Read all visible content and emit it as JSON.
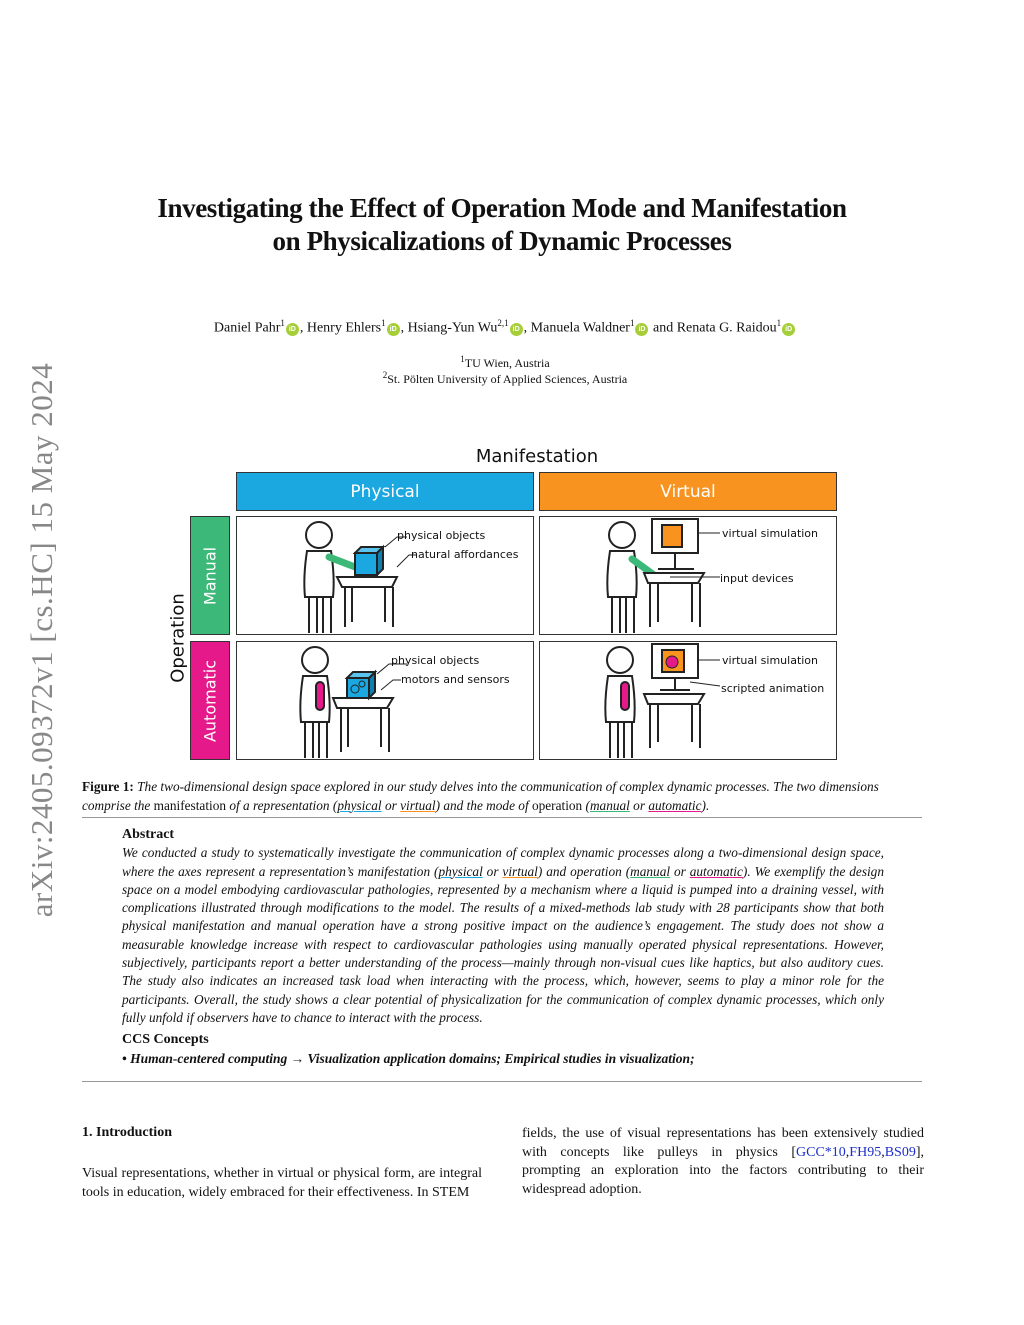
{
  "sidebar_stamp": "arXiv:2405.09372v1  [cs.HC]  15 May 2024",
  "title": {
    "line1": "Investigating the Effect of Operation Mode and Manifestation",
    "line2": "on Physicalizations of Dynamic Processes"
  },
  "authors": [
    {
      "name": "Daniel Pahr",
      "sup": "1"
    },
    {
      "name": "Henry Ehlers",
      "sup": "1"
    },
    {
      "name": "Hsiang-Yun Wu",
      "sup": "2,1"
    },
    {
      "name": "Manuela Waldner",
      "sup": "1"
    },
    {
      "name": "Renata G. Raidou",
      "sup": "1"
    }
  ],
  "author_sep": ", ",
  "author_and": " and ",
  "orcid_label": "iD",
  "affiliations": [
    {
      "sup": "1",
      "text": "TU Wien, Austria"
    },
    {
      "sup": "2",
      "text": "St. Pölten University of Applied Sciences, Austria"
    }
  ],
  "figure": {
    "axis_top": "Manifestation",
    "axis_left": "Operation",
    "columns": [
      {
        "label": "Physical",
        "color": "#1ba8e0"
      },
      {
        "label": "Virtual",
        "color": "#f7931e"
      }
    ],
    "rows": [
      {
        "label": "Manual",
        "color": "#3cb878"
      },
      {
        "label": "Automatic",
        "color": "#e6198a"
      }
    ],
    "cells": {
      "manual_physical": [
        "physical objects",
        "natural affordances"
      ],
      "manual_virtual": [
        "virtual simulation",
        "input devices"
      ],
      "automatic_physical": [
        "physical objects",
        "motors and sensors"
      ],
      "automatic_virtual": [
        "virtual simulation",
        "scripted animation"
      ]
    },
    "caption": {
      "label": "Figure 1:",
      "t1": " The two-dimensional design space explored in our study delves into the communication of complex dynamic processes. The two dimensions comprise the ",
      "manifestation": "manifestation",
      "t2": " of a representation (",
      "physical": "physical",
      "or1": " or ",
      "virtual": "virtual",
      "t3": ") and the mode of ",
      "operation": "operation",
      "t4": " (",
      "manual": "manual",
      "or2": " or ",
      "automatic": "automatic",
      "t5": ")."
    }
  },
  "abstract": {
    "heading": "Abstract",
    "p1": "We conducted a study to systematically investigate the communication of complex dynamic processes along a two-dimensional design space, where the axes represent a representation’s manifestation (",
    "physical": "physical",
    "or1": " or ",
    "virtual": "virtual",
    "p2": ") and operation (",
    "manual": "manual",
    "or2": " or ",
    "automatic": "automatic",
    "p3": "). We exemplify the design space on a model embodying cardiovascular pathologies, represented by a mechanism where a liquid is pumped into a draining vessel, with complications illustrated through modifications to the model. The results of a mixed-methods lab study with 28 participants show that both physical manifestation and manual operation have a strong positive impact on the audience’s engagement. The study does not show a measurable knowledge increase with respect to cardiovascular pathologies using manually operated physical representations. However, subjectively, participants report a better understanding of the process—mainly through non-visual cues like haptics, but also auditory cues. The study also indicates an increased task load when interacting with the process, which, however, seems to play a minor role for the participants. Overall, the study shows a clear potential of physicalization for the communication of complex dynamic processes, which only fully unfold if observers have to chance to interact with the process."
  },
  "ccs": {
    "heading": "CCS Concepts",
    "text": "• Human-centered computing → Visualization application domains; Empirical studies in visualization;"
  },
  "intro": {
    "heading": "1.  Introduction",
    "left": "Visual representations, whether in virtual or physical form, are integral tools in education, widely embraced for their effectiveness. In STEM",
    "right_pre": "fields, the use of visual representations has been extensively studied with concepts like pulleys in physics [",
    "citations": [
      "GCC*10",
      "FH95",
      "BS09"
    ],
    "right_post": "], prompting an exploration into the factors contributing to their widespread adoption."
  }
}
